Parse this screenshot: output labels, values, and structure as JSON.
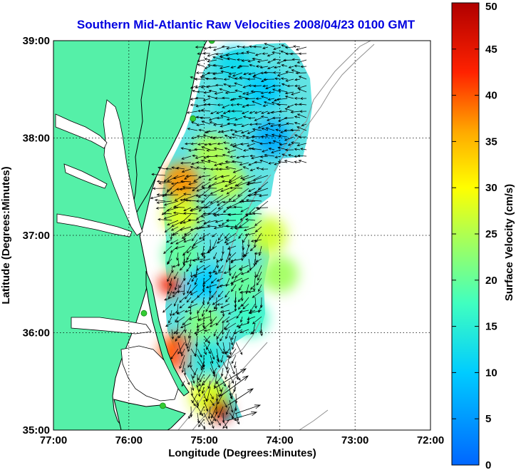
{
  "title": "Southern Mid-Atlantic Raw Velocities 2008/04/23 0100 GMT",
  "xlabel": "Longitude (Degrees:Minutes)",
  "ylabel": "Latitude (Degrees:Minutes)",
  "colorbar_label": "Surface Velocity (cm/s)",
  "x_ticks": [
    {
      "value": -77,
      "label": "77:00"
    },
    {
      "value": -76,
      "label": "76:00"
    },
    {
      "value": -75,
      "label": "75:00"
    },
    {
      "value": -74,
      "label": "74:00"
    },
    {
      "value": -73,
      "label": "73:00"
    },
    {
      "value": -72,
      "label": "72:00"
    }
  ],
  "y_ticks": [
    {
      "value": 39,
      "label": "39:00"
    },
    {
      "value": 38,
      "label": "38:00"
    },
    {
      "value": 37,
      "label": "37:00"
    },
    {
      "value": 36,
      "label": "36:00"
    },
    {
      "value": 35,
      "label": "35:00"
    }
  ],
  "colorbar_ticks": [
    {
      "value": 50,
      "label": "50"
    },
    {
      "value": 45,
      "label": "45"
    },
    {
      "value": 40,
      "label": "40"
    },
    {
      "value": 35,
      "label": "35"
    },
    {
      "value": 30,
      "label": "30"
    },
    {
      "value": 25,
      "label": "25"
    },
    {
      "value": 20,
      "label": "20"
    },
    {
      "value": 15,
      "label": "15"
    },
    {
      "value": 10,
      "label": "10"
    },
    {
      "value": 5,
      "label": "5"
    },
    {
      "value": 0,
      "label": "0"
    }
  ],
  "colors": {
    "title": "#0000e0",
    "land": "#55f0a8",
    "ocean": "#ffffff",
    "grid": "#000000",
    "arrows": "#000000",
    "isobath": "#909090",
    "hf_radar_site": "#33cc33"
  },
  "chart_data": {
    "type": "heatmap",
    "title": "Southern Mid-Atlantic Raw Velocities 2008/04/23 0100 GMT",
    "xlabel": "Longitude (Degrees:Minutes)",
    "ylabel": "Latitude (Degrees:Minutes)",
    "xlim": [
      -77,
      -72
    ],
    "ylim": [
      35,
      39
    ],
    "colorbar": {
      "label": "Surface Velocity (cm/s)",
      "range": [
        0,
        50
      ],
      "colormap": "jet"
    },
    "grid": true,
    "overlay": "velocity vectors (arrows) over color-coded surface current speed",
    "regions": [
      {
        "lon": -74.6,
        "lat": 38.75,
        "speed": 12
      },
      {
        "lon": -74.2,
        "lat": 38.5,
        "speed": 10
      },
      {
        "lon": -74.6,
        "lat": 38.3,
        "speed": 13
      },
      {
        "lon": -74.1,
        "lat": 38.0,
        "speed": 7
      },
      {
        "lon": -74.9,
        "lat": 37.85,
        "speed": 25
      },
      {
        "lon": -75.3,
        "lat": 37.55,
        "speed": 37
      },
      {
        "lon": -74.7,
        "lat": 37.55,
        "speed": 26
      },
      {
        "lon": -75.3,
        "lat": 37.2,
        "speed": 28
      },
      {
        "lon": -74.5,
        "lat": 37.15,
        "speed": 18
      },
      {
        "lon": -74.15,
        "lat": 37.0,
        "speed": 27
      },
      {
        "lon": -75.3,
        "lat": 36.8,
        "speed": 20
      },
      {
        "lon": -75.45,
        "lat": 36.5,
        "speed": 44
      },
      {
        "lon": -75.0,
        "lat": 36.5,
        "speed": 10
      },
      {
        "lon": -74.5,
        "lat": 36.5,
        "speed": 20
      },
      {
        "lon": -74.0,
        "lat": 36.6,
        "speed": 24
      },
      {
        "lon": -75.0,
        "lat": 36.1,
        "speed": 22
      },
      {
        "lon": -74.4,
        "lat": 36.15,
        "speed": 17
      },
      {
        "lon": -75.35,
        "lat": 35.8,
        "speed": 40
      },
      {
        "lon": -75.0,
        "lat": 35.75,
        "speed": 14
      },
      {
        "lon": -74.95,
        "lat": 35.35,
        "speed": 28
      },
      {
        "lon": -74.8,
        "lat": 35.2,
        "speed": 49
      }
    ],
    "hf_radar_sites": [
      {
        "lon": -74.9,
        "lat": 39.0
      },
      {
        "lon": -75.15,
        "lat": 38.2
      },
      {
        "lon": -75.8,
        "lat": 36.2
      },
      {
        "lon": -75.55,
        "lat": 35.25
      }
    ]
  }
}
